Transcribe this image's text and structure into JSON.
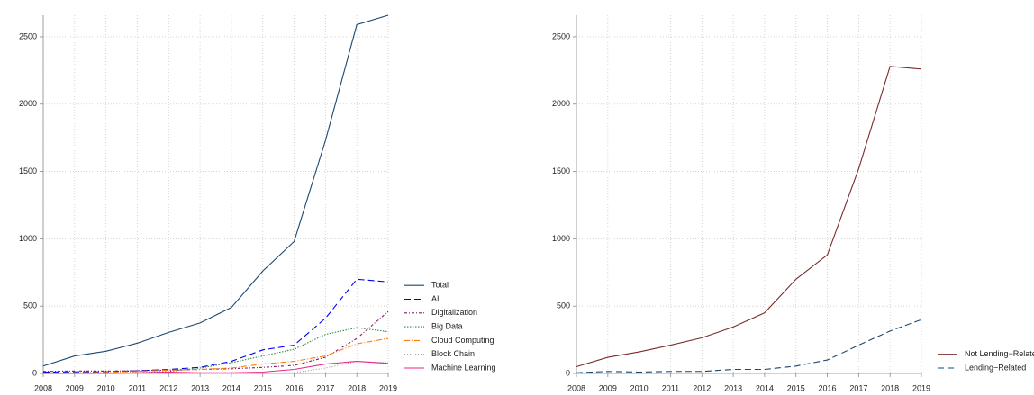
{
  "chart_data": [
    {
      "type": "line",
      "xlim": [
        2008,
        2019
      ],
      "xticks": [
        2008,
        2009,
        2010,
        2011,
        2012,
        2013,
        2014,
        2015,
        2016,
        2017,
        2018,
        2019
      ],
      "x": [
        2008,
        2009,
        2010,
        2011,
        2012,
        2013,
        2014,
        2015,
        2016,
        2017,
        2018,
        2019
      ],
      "ylim": [
        0,
        2660
      ],
      "yticks": [
        0,
        500,
        1000,
        1500,
        2000,
        2500
      ],
      "grid": true,
      "legend": "right",
      "series": [
        {
          "name": "Total",
          "color": "#1a476f",
          "dash": "",
          "values": [
            55,
            130,
            165,
            225,
            305,
            375,
            490,
            760,
            980,
            1730,
            2590,
            2660
          ]
        },
        {
          "name": "AI",
          "color": "#0000ee",
          "dash": "7 4",
          "values": [
            10,
            12,
            12,
            20,
            30,
            45,
            90,
            175,
            210,
            410,
            700,
            680
          ]
        },
        {
          "name": "Digitalization",
          "color": "#8b1a6b",
          "dash": "3 2 1 2",
          "values": [
            15,
            18,
            18,
            20,
            25,
            30,
            35,
            45,
            60,
            120,
            260,
            460
          ]
        },
        {
          "name": "Big Data",
          "color": "#2e8b3e",
          "dash": "1.5 1.5",
          "values": [
            0,
            0,
            0,
            5,
            15,
            40,
            80,
            130,
            180,
            290,
            340,
            310
          ]
        },
        {
          "name": "Cloud Computing",
          "color": "#ff7f0e",
          "dash": "6 2 1 2",
          "values": [
            0,
            5,
            8,
            15,
            25,
            30,
            40,
            70,
            90,
            130,
            220,
            260
          ]
        },
        {
          "name": "Block Chain",
          "color": "#999999",
          "dash": "1 2",
          "values": [
            0,
            0,
            0,
            0,
            0,
            0,
            0,
            0,
            5,
            40,
            90,
            80
          ]
        },
        {
          "name": "Machine Learning",
          "color": "#e7298a",
          "dash": "",
          "values": [
            0,
            0,
            0,
            5,
            10,
            5,
            5,
            10,
            30,
            70,
            90,
            75
          ]
        }
      ]
    },
    {
      "type": "line",
      "xlim": [
        2008,
        2019
      ],
      "xticks": [
        2008,
        2009,
        2010,
        2011,
        2012,
        2013,
        2014,
        2015,
        2016,
        2017,
        2018,
        2019
      ],
      "x": [
        2008,
        2009,
        2010,
        2011,
        2012,
        2013,
        2014,
        2015,
        2016,
        2017,
        2018,
        2019
      ],
      "ylim": [
        0,
        2660
      ],
      "yticks": [
        0,
        500,
        1000,
        1500,
        2000,
        2500
      ],
      "grid": true,
      "legend": "right",
      "series": [
        {
          "name": "Not Lending−Related",
          "color": "#7b2b2b",
          "dash": "",
          "values": [
            50,
            120,
            160,
            210,
            265,
            345,
            450,
            700,
            880,
            1520,
            2280,
            2260
          ]
        },
        {
          "name": "Lending−Related",
          "color": "#1a476f",
          "dash": "7 4",
          "values": [
            5,
            15,
            10,
            15,
            15,
            30,
            30,
            55,
            100,
            210,
            315,
            400
          ]
        }
      ]
    }
  ]
}
